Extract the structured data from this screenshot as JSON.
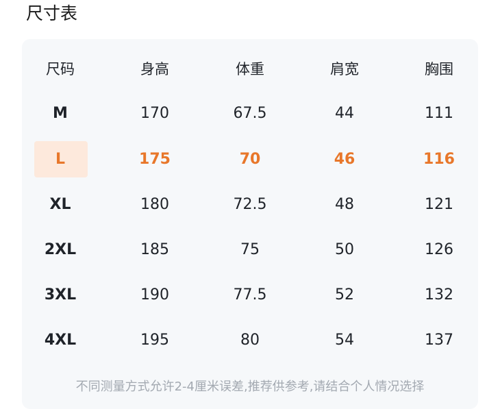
{
  "title": "尺寸表",
  "table": {
    "headers": [
      "尺码",
      "身高",
      "体重",
      "肩宽",
      "胸围"
    ],
    "rows": [
      [
        "M",
        "170",
        "67.5",
        "44",
        "111"
      ],
      [
        "L",
        "175",
        "70",
        "46",
        "116"
      ],
      [
        "XL",
        "180",
        "72.5",
        "48",
        "121"
      ],
      [
        "2XL",
        "185",
        "75",
        "50",
        "126"
      ],
      [
        "3XL",
        "190",
        "77.5",
        "52",
        "132"
      ],
      [
        "4XL",
        "195",
        "80",
        "54",
        "137"
      ]
    ],
    "highlighted_row": 1,
    "highlight_color": "#e8772a",
    "highlight_bg": "#fde9dc"
  },
  "footnote": "不同测量方式允许2-4厘米误差,推荐供参考,请结合个人情况选择"
}
